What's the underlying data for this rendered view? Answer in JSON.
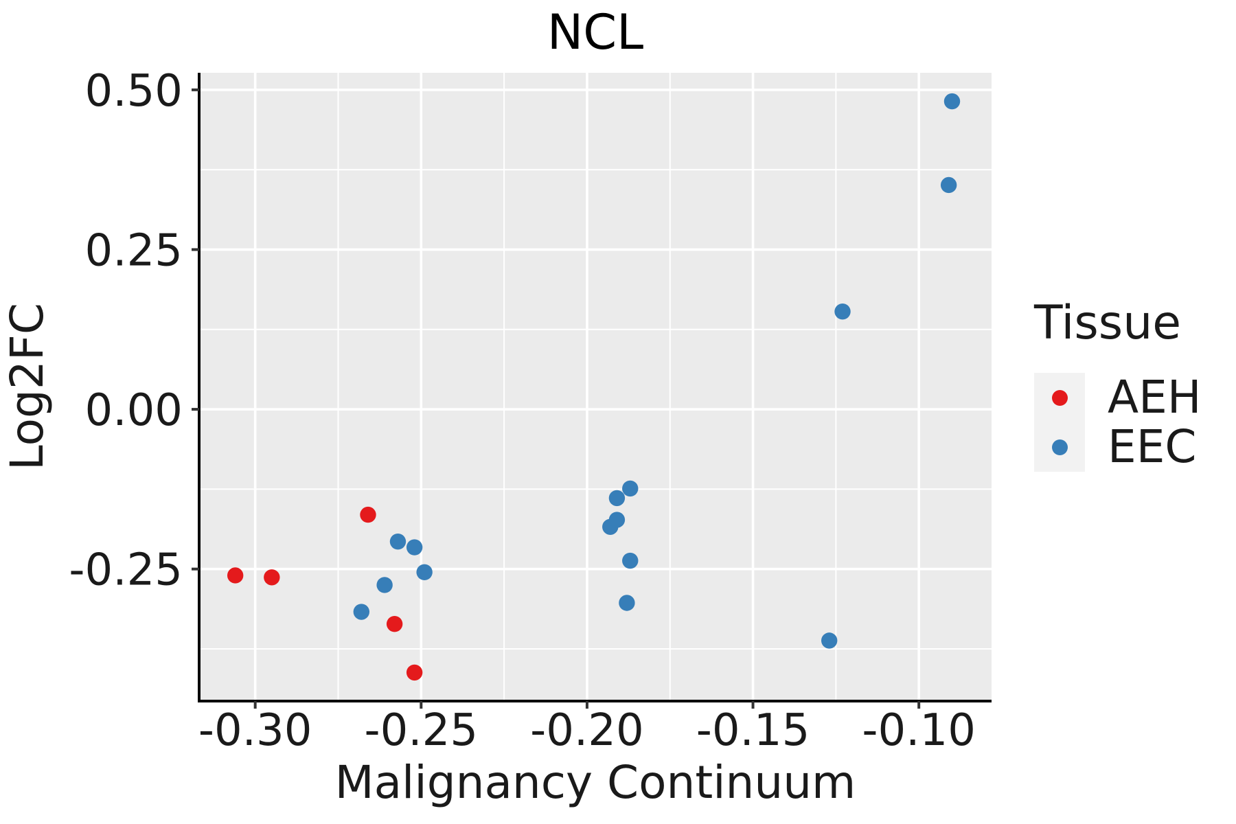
{
  "chart_data": {
    "type": "scatter",
    "title": "NCL",
    "xlabel": "Malignancy Continuum",
    "ylabel": "Log2FC",
    "xlim": [
      -0.3169,
      -0.0781
    ],
    "ylim": [
      -0.4567,
      0.5267
    ],
    "grid": true,
    "panel_bg": "#EBEBEB",
    "grid_color": "#FFFFFF",
    "axis_color": "#000000",
    "tick_color": "#333333",
    "x_ticks": [
      {
        "value": -0.3,
        "label": "-0.30"
      },
      {
        "value": -0.25,
        "label": "-0.25"
      },
      {
        "value": -0.2,
        "label": "-0.20"
      },
      {
        "value": -0.15,
        "label": "-0.15"
      },
      {
        "value": -0.1,
        "label": "-0.10"
      }
    ],
    "y_ticks": [
      {
        "value": 0.5,
        "label": "0.50"
      },
      {
        "value": 0.25,
        "label": "0.25"
      },
      {
        "value": 0.0,
        "label": "0.00"
      },
      {
        "value": -0.25,
        "label": "-0.25"
      }
    ],
    "x_minor": [
      -0.275,
      -0.225,
      -0.175,
      -0.125
    ],
    "y_minor": [
      0.375,
      0.125,
      -0.125,
      -0.375
    ],
    "legend": {
      "title": "Tissue",
      "position": "right"
    },
    "series": [
      {
        "name": "AEH",
        "color": "#E41A1C",
        "points": [
          [
            -0.306,
            -0.26
          ],
          [
            -0.295,
            -0.263
          ],
          [
            -0.266,
            -0.165
          ],
          [
            -0.258,
            -0.336
          ],
          [
            -0.252,
            -0.412
          ]
        ]
      },
      {
        "name": "EEC",
        "color": "#377EB8",
        "points": [
          [
            -0.257,
            -0.207
          ],
          [
            -0.252,
            -0.216
          ],
          [
            -0.249,
            -0.255
          ],
          [
            -0.261,
            -0.275
          ],
          [
            -0.268,
            -0.317
          ],
          [
            -0.193,
            -0.184
          ],
          [
            -0.191,
            -0.173
          ],
          [
            -0.191,
            -0.139
          ],
          [
            -0.187,
            -0.124
          ],
          [
            -0.187,
            -0.237
          ],
          [
            -0.188,
            -0.303
          ],
          [
            -0.127,
            -0.362
          ],
          [
            -0.123,
            0.153
          ],
          [
            -0.091,
            0.351
          ],
          [
            -0.09,
            0.482
          ]
        ]
      }
    ]
  }
}
